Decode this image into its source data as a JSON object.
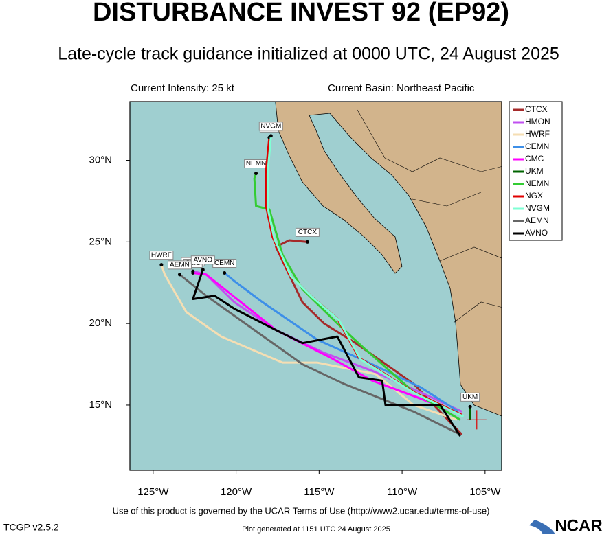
{
  "chart_data": {
    "type": "line",
    "title": "DISTURBANCE INVEST 92 (EP92)",
    "subtitle": "Late-cycle track guidance initialized at 0000 UTC, 24 August 2025",
    "intensity": "Current Intensity: 25 kt",
    "basin": "Current Basin: Northeast Pacific",
    "terms": "Use of this product is governed by the UCAR Terms of Use (http://www2.ucar.edu/terms-of-use)",
    "version": "TCGP v2.5.2",
    "generated": "Plot generated at 1151 UTC  24 August 2025",
    "logo": "NCAR",
    "xlim": [
      -126.4,
      -104
    ],
    "ylim": [
      11,
      33.6
    ],
    "xticks": [
      {
        "value": -125,
        "label": "125°W"
      },
      {
        "value": -120,
        "label": "120°W"
      },
      {
        "value": -115,
        "label": "115°W"
      },
      {
        "value": -110,
        "label": "110°W"
      },
      {
        "value": -105,
        "label": "105°W"
      }
    ],
    "yticks": [
      {
        "value": 15,
        "label": "15°N"
      },
      {
        "value": 20,
        "label": "20°N"
      },
      {
        "value": 25,
        "label": "25°N"
      },
      {
        "value": 30,
        "label": "30°N"
      }
    ],
    "legend": "upper right outside",
    "current_position": {
      "x": -105.5,
      "y": 14.1
    },
    "series": [
      {
        "name": "CTCX",
        "color": "#a52a2a",
        "x": [
          -106.4,
          -109.3,
          -112.8,
          -114.7,
          -116,
          -117,
          -117.6,
          -116.8,
          -115.7
        ],
        "values": [
          13.2,
          16.3,
          18.8,
          20,
          21.3,
          23.4,
          24.7,
          25.1,
          25
        ]
      },
      {
        "name": "HMON",
        "color": "#c050f0",
        "x": [
          -106.4,
          -108.5,
          -111.8,
          -114.7,
          -117.6,
          -120.1,
          -121.8,
          -122.6
        ],
        "values": [
          14.6,
          15.6,
          17.1,
          18.2,
          19.6,
          21.3,
          23,
          23.2
        ]
      },
      {
        "name": "HWRF",
        "color": "#f5deb3",
        "x": [
          -106.7,
          -109.3,
          -111.6,
          -115.1,
          -117.2,
          -120.9,
          -123,
          -124.3,
          -124.5
        ],
        "values": [
          14.1,
          15,
          16.9,
          17.6,
          17.6,
          19.2,
          20.7,
          23,
          23.6
        ]
      },
      {
        "name": "CEMN",
        "color": "#3d8fe8",
        "x": [
          -106.6,
          -108.9,
          -111.8,
          -115.1,
          -118.4,
          -120.1,
          -120.7
        ],
        "values": [
          14.6,
          16.1,
          17.5,
          19,
          21.3,
          22.6,
          23.1
        ]
      },
      {
        "name": "CMC",
        "color": "#ff00ff",
        "x": [
          -106.4,
          -108.9,
          -111.8,
          -114.3,
          -117.6,
          -119.7,
          -121.8,
          -122.6
        ],
        "values": [
          14.4,
          15.4,
          16.5,
          17.9,
          19.6,
          21.3,
          23,
          23.1
        ]
      },
      {
        "name": "UKM",
        "color": "#006400",
        "x": [
          -105.9,
          -105.9
        ],
        "values": [
          14.1,
          14.9
        ]
      },
      {
        "name": "NEMN",
        "color": "#33cc33",
        "x": [
          -106.5,
          -109.3,
          -112.2,
          -113.9,
          -116,
          -117.2,
          -118,
          -118.8,
          -118.9,
          -118.8
        ],
        "values": [
          14.1,
          15.8,
          18.4,
          20,
          22.1,
          24.2,
          27,
          27.2,
          28.9,
          29.2
        ]
      },
      {
        "name": "NGX",
        "color": "#e00000",
        "x": [
          -106.4,
          -109.3,
          -112.6,
          -113.9,
          -115.5,
          -116.8,
          -117.8,
          -118.2,
          -118.2,
          -118
        ],
        "values": [
          14.4,
          15.8,
          17.9,
          20.3,
          21.7,
          23,
          25.3,
          27.2,
          29.3,
          31.4
        ]
      },
      {
        "name": "NVGM",
        "color": "#7fffd4",
        "x": [
          -106.3,
          -109.2,
          -112.5,
          -113.8,
          -115.4,
          -116.7,
          -117.7,
          -118.1,
          -118.1,
          -117.9
        ],
        "values": [
          14.3,
          15.7,
          17.8,
          20.2,
          21.6,
          22.9,
          25.2,
          27.1,
          29.2,
          31.5
        ]
      },
      {
        "name": "AEMN",
        "color": "#666666",
        "x": [
          -106.5,
          -109.3,
          -113.5,
          -116,
          -118.9,
          -121.8,
          -123.4
        ],
        "values": [
          13.2,
          14.6,
          16.3,
          17.5,
          19.6,
          21.7,
          23
        ]
      },
      {
        "name": "AVNO",
        "color": "#000000",
        "x": [
          -106.5,
          -107.7,
          -111,
          -111.2,
          -112.6,
          -113.9,
          -116,
          -117.6,
          -120.1,
          -121.3,
          -122.6,
          -122
        ],
        "values": [
          13.1,
          15,
          15,
          16.5,
          16.7,
          19.2,
          18.8,
          19.6,
          20.9,
          21.7,
          21.5,
          23.3
        ]
      }
    ]
  }
}
